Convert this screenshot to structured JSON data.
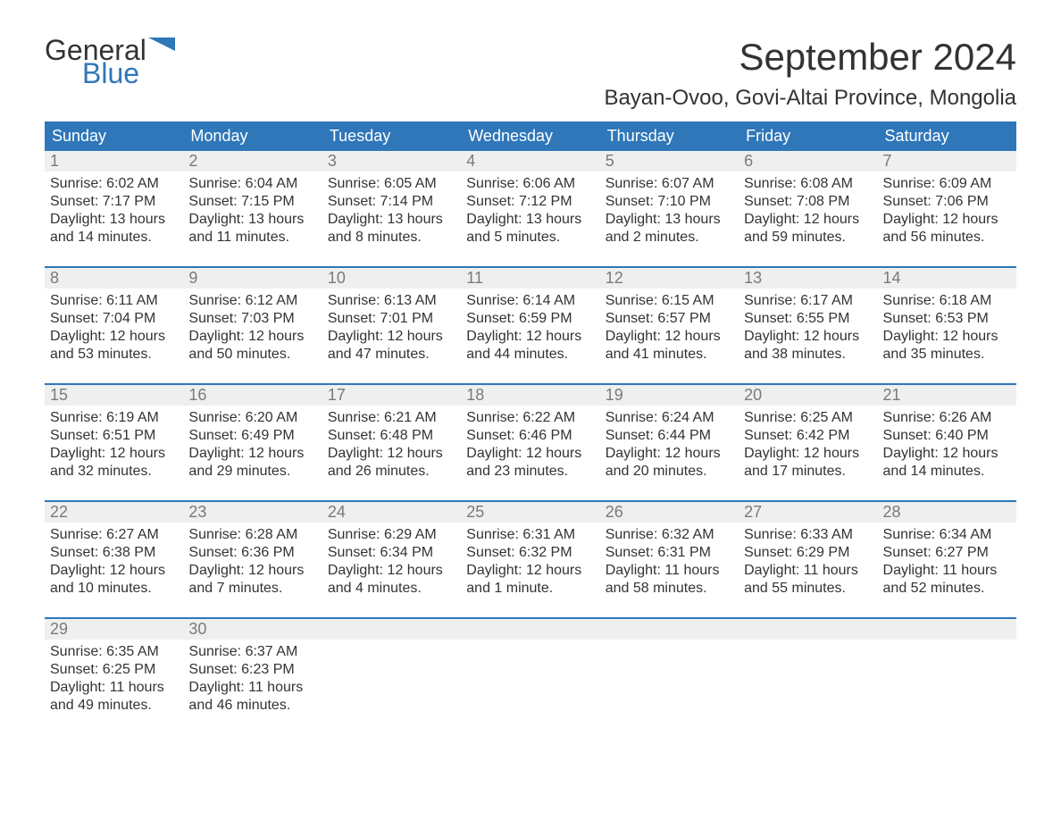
{
  "logo": {
    "top": "General",
    "bottom": "Blue",
    "accent_color": "#2f77b9"
  },
  "title": "September 2024",
  "location": "Bayan-Ovoo, Govi-Altai Province, Mongolia",
  "colors": {
    "header_bg": "#2f77b9",
    "header_text": "#ffffff",
    "daynum_bg": "#efefef",
    "daynum_text": "#7a7a7a",
    "body_text": "#333333",
    "row_border": "#2f77b9",
    "page_bg": "#ffffff"
  },
  "fonts": {
    "title_size": 42,
    "location_size": 24,
    "dow_size": 18,
    "daynum_size": 18,
    "body_size": 16
  },
  "days_of_week": [
    "Sunday",
    "Monday",
    "Tuesday",
    "Wednesday",
    "Thursday",
    "Friday",
    "Saturday"
  ],
  "weeks": [
    [
      {
        "n": "1",
        "sunrise": "Sunrise: 6:02 AM",
        "sunset": "Sunset: 7:17 PM",
        "d1": "Daylight: 13 hours",
        "d2": "and 14 minutes."
      },
      {
        "n": "2",
        "sunrise": "Sunrise: 6:04 AM",
        "sunset": "Sunset: 7:15 PM",
        "d1": "Daylight: 13 hours",
        "d2": "and 11 minutes."
      },
      {
        "n": "3",
        "sunrise": "Sunrise: 6:05 AM",
        "sunset": "Sunset: 7:14 PM",
        "d1": "Daylight: 13 hours",
        "d2": "and 8 minutes."
      },
      {
        "n": "4",
        "sunrise": "Sunrise: 6:06 AM",
        "sunset": "Sunset: 7:12 PM",
        "d1": "Daylight: 13 hours",
        "d2": "and 5 minutes."
      },
      {
        "n": "5",
        "sunrise": "Sunrise: 6:07 AM",
        "sunset": "Sunset: 7:10 PM",
        "d1": "Daylight: 13 hours",
        "d2": "and 2 minutes."
      },
      {
        "n": "6",
        "sunrise": "Sunrise: 6:08 AM",
        "sunset": "Sunset: 7:08 PM",
        "d1": "Daylight: 12 hours",
        "d2": "and 59 minutes."
      },
      {
        "n": "7",
        "sunrise": "Sunrise: 6:09 AM",
        "sunset": "Sunset: 7:06 PM",
        "d1": "Daylight: 12 hours",
        "d2": "and 56 minutes."
      }
    ],
    [
      {
        "n": "8",
        "sunrise": "Sunrise: 6:11 AM",
        "sunset": "Sunset: 7:04 PM",
        "d1": "Daylight: 12 hours",
        "d2": "and 53 minutes."
      },
      {
        "n": "9",
        "sunrise": "Sunrise: 6:12 AM",
        "sunset": "Sunset: 7:03 PM",
        "d1": "Daylight: 12 hours",
        "d2": "and 50 minutes."
      },
      {
        "n": "10",
        "sunrise": "Sunrise: 6:13 AM",
        "sunset": "Sunset: 7:01 PM",
        "d1": "Daylight: 12 hours",
        "d2": "and 47 minutes."
      },
      {
        "n": "11",
        "sunrise": "Sunrise: 6:14 AM",
        "sunset": "Sunset: 6:59 PM",
        "d1": "Daylight: 12 hours",
        "d2": "and 44 minutes."
      },
      {
        "n": "12",
        "sunrise": "Sunrise: 6:15 AM",
        "sunset": "Sunset: 6:57 PM",
        "d1": "Daylight: 12 hours",
        "d2": "and 41 minutes."
      },
      {
        "n": "13",
        "sunrise": "Sunrise: 6:17 AM",
        "sunset": "Sunset: 6:55 PM",
        "d1": "Daylight: 12 hours",
        "d2": "and 38 minutes."
      },
      {
        "n": "14",
        "sunrise": "Sunrise: 6:18 AM",
        "sunset": "Sunset: 6:53 PM",
        "d1": "Daylight: 12 hours",
        "d2": "and 35 minutes."
      }
    ],
    [
      {
        "n": "15",
        "sunrise": "Sunrise: 6:19 AM",
        "sunset": "Sunset: 6:51 PM",
        "d1": "Daylight: 12 hours",
        "d2": "and 32 minutes."
      },
      {
        "n": "16",
        "sunrise": "Sunrise: 6:20 AM",
        "sunset": "Sunset: 6:49 PM",
        "d1": "Daylight: 12 hours",
        "d2": "and 29 minutes."
      },
      {
        "n": "17",
        "sunrise": "Sunrise: 6:21 AM",
        "sunset": "Sunset: 6:48 PM",
        "d1": "Daylight: 12 hours",
        "d2": "and 26 minutes."
      },
      {
        "n": "18",
        "sunrise": "Sunrise: 6:22 AM",
        "sunset": "Sunset: 6:46 PM",
        "d1": "Daylight: 12 hours",
        "d2": "and 23 minutes."
      },
      {
        "n": "19",
        "sunrise": "Sunrise: 6:24 AM",
        "sunset": "Sunset: 6:44 PM",
        "d1": "Daylight: 12 hours",
        "d2": "and 20 minutes."
      },
      {
        "n": "20",
        "sunrise": "Sunrise: 6:25 AM",
        "sunset": "Sunset: 6:42 PM",
        "d1": "Daylight: 12 hours",
        "d2": "and 17 minutes."
      },
      {
        "n": "21",
        "sunrise": "Sunrise: 6:26 AM",
        "sunset": "Sunset: 6:40 PM",
        "d1": "Daylight: 12 hours",
        "d2": "and 14 minutes."
      }
    ],
    [
      {
        "n": "22",
        "sunrise": "Sunrise: 6:27 AM",
        "sunset": "Sunset: 6:38 PM",
        "d1": "Daylight: 12 hours",
        "d2": "and 10 minutes."
      },
      {
        "n": "23",
        "sunrise": "Sunrise: 6:28 AM",
        "sunset": "Sunset: 6:36 PM",
        "d1": "Daylight: 12 hours",
        "d2": "and 7 minutes."
      },
      {
        "n": "24",
        "sunrise": "Sunrise: 6:29 AM",
        "sunset": "Sunset: 6:34 PM",
        "d1": "Daylight: 12 hours",
        "d2": "and 4 minutes."
      },
      {
        "n": "25",
        "sunrise": "Sunrise: 6:31 AM",
        "sunset": "Sunset: 6:32 PM",
        "d1": "Daylight: 12 hours",
        "d2": "and 1 minute."
      },
      {
        "n": "26",
        "sunrise": "Sunrise: 6:32 AM",
        "sunset": "Sunset: 6:31 PM",
        "d1": "Daylight: 11 hours",
        "d2": "and 58 minutes."
      },
      {
        "n": "27",
        "sunrise": "Sunrise: 6:33 AM",
        "sunset": "Sunset: 6:29 PM",
        "d1": "Daylight: 11 hours",
        "d2": "and 55 minutes."
      },
      {
        "n": "28",
        "sunrise": "Sunrise: 6:34 AM",
        "sunset": "Sunset: 6:27 PM",
        "d1": "Daylight: 11 hours",
        "d2": "and 52 minutes."
      }
    ],
    [
      {
        "n": "29",
        "sunrise": "Sunrise: 6:35 AM",
        "sunset": "Sunset: 6:25 PM",
        "d1": "Daylight: 11 hours",
        "d2": "and 49 minutes."
      },
      {
        "n": "30",
        "sunrise": "Sunrise: 6:37 AM",
        "sunset": "Sunset: 6:23 PM",
        "d1": "Daylight: 11 hours",
        "d2": "and 46 minutes."
      },
      null,
      null,
      null,
      null,
      null
    ]
  ]
}
